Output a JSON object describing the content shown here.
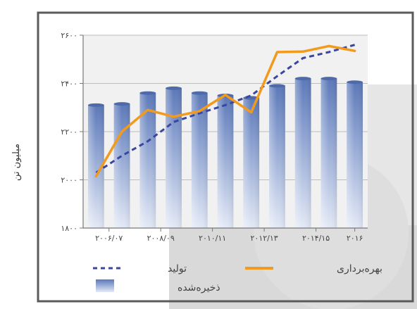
{
  "chart_data": {
    "type": "bar",
    "ylabel": "میلیون تن",
    "ylim": [
      1800,
      2600
    ],
    "yticks": [
      1800,
      2000,
      2200,
      2400,
      2600
    ],
    "ytick_labels": [
      "۱۸۰۰",
      "۲۰۰۰",
      "۲۲۰۰",
      "۲۴۰۰",
      "۲۶۰۰"
    ],
    "x_labels": [
      "۲۰۰۶/۰۷",
      "۲۰۰۸/۰۹",
      "۲۰۱۰/۱۱",
      "۲۰۱۲/۱۳",
      "۲۰۱۴/۱۵",
      "۲۰۱۶"
    ],
    "grid": true,
    "legend_position": "bottom",
    "series": [
      {
        "name": "ذخیره‌شده",
        "kind": "bar",
        "values": [
          2310,
          2315,
          2360,
          2380,
          2360,
          2350,
          2340,
          2390,
          2420,
          2420,
          2405
        ]
      },
      {
        "name": "بهره‌برداری",
        "kind": "line",
        "values": [
          2015,
          2200,
          2290,
          2262,
          2285,
          2352,
          2280,
          2530,
          2532,
          2555,
          2535
        ]
      },
      {
        "name": "تولید",
        "kind": "dashed-line",
        "values": [
          2030,
          2100,
          2160,
          2240,
          2276,
          2310,
          2350,
          2430,
          2505,
          2530,
          2560
        ]
      }
    ],
    "colors": {
      "bar_top": "#5b78b8",
      "bar_light": "#cfd9ee",
      "line": "#f29a1d",
      "dashed": "#3b46a0",
      "frame": "#5a5a5a",
      "plot_bg": "#f1f1f1"
    }
  }
}
